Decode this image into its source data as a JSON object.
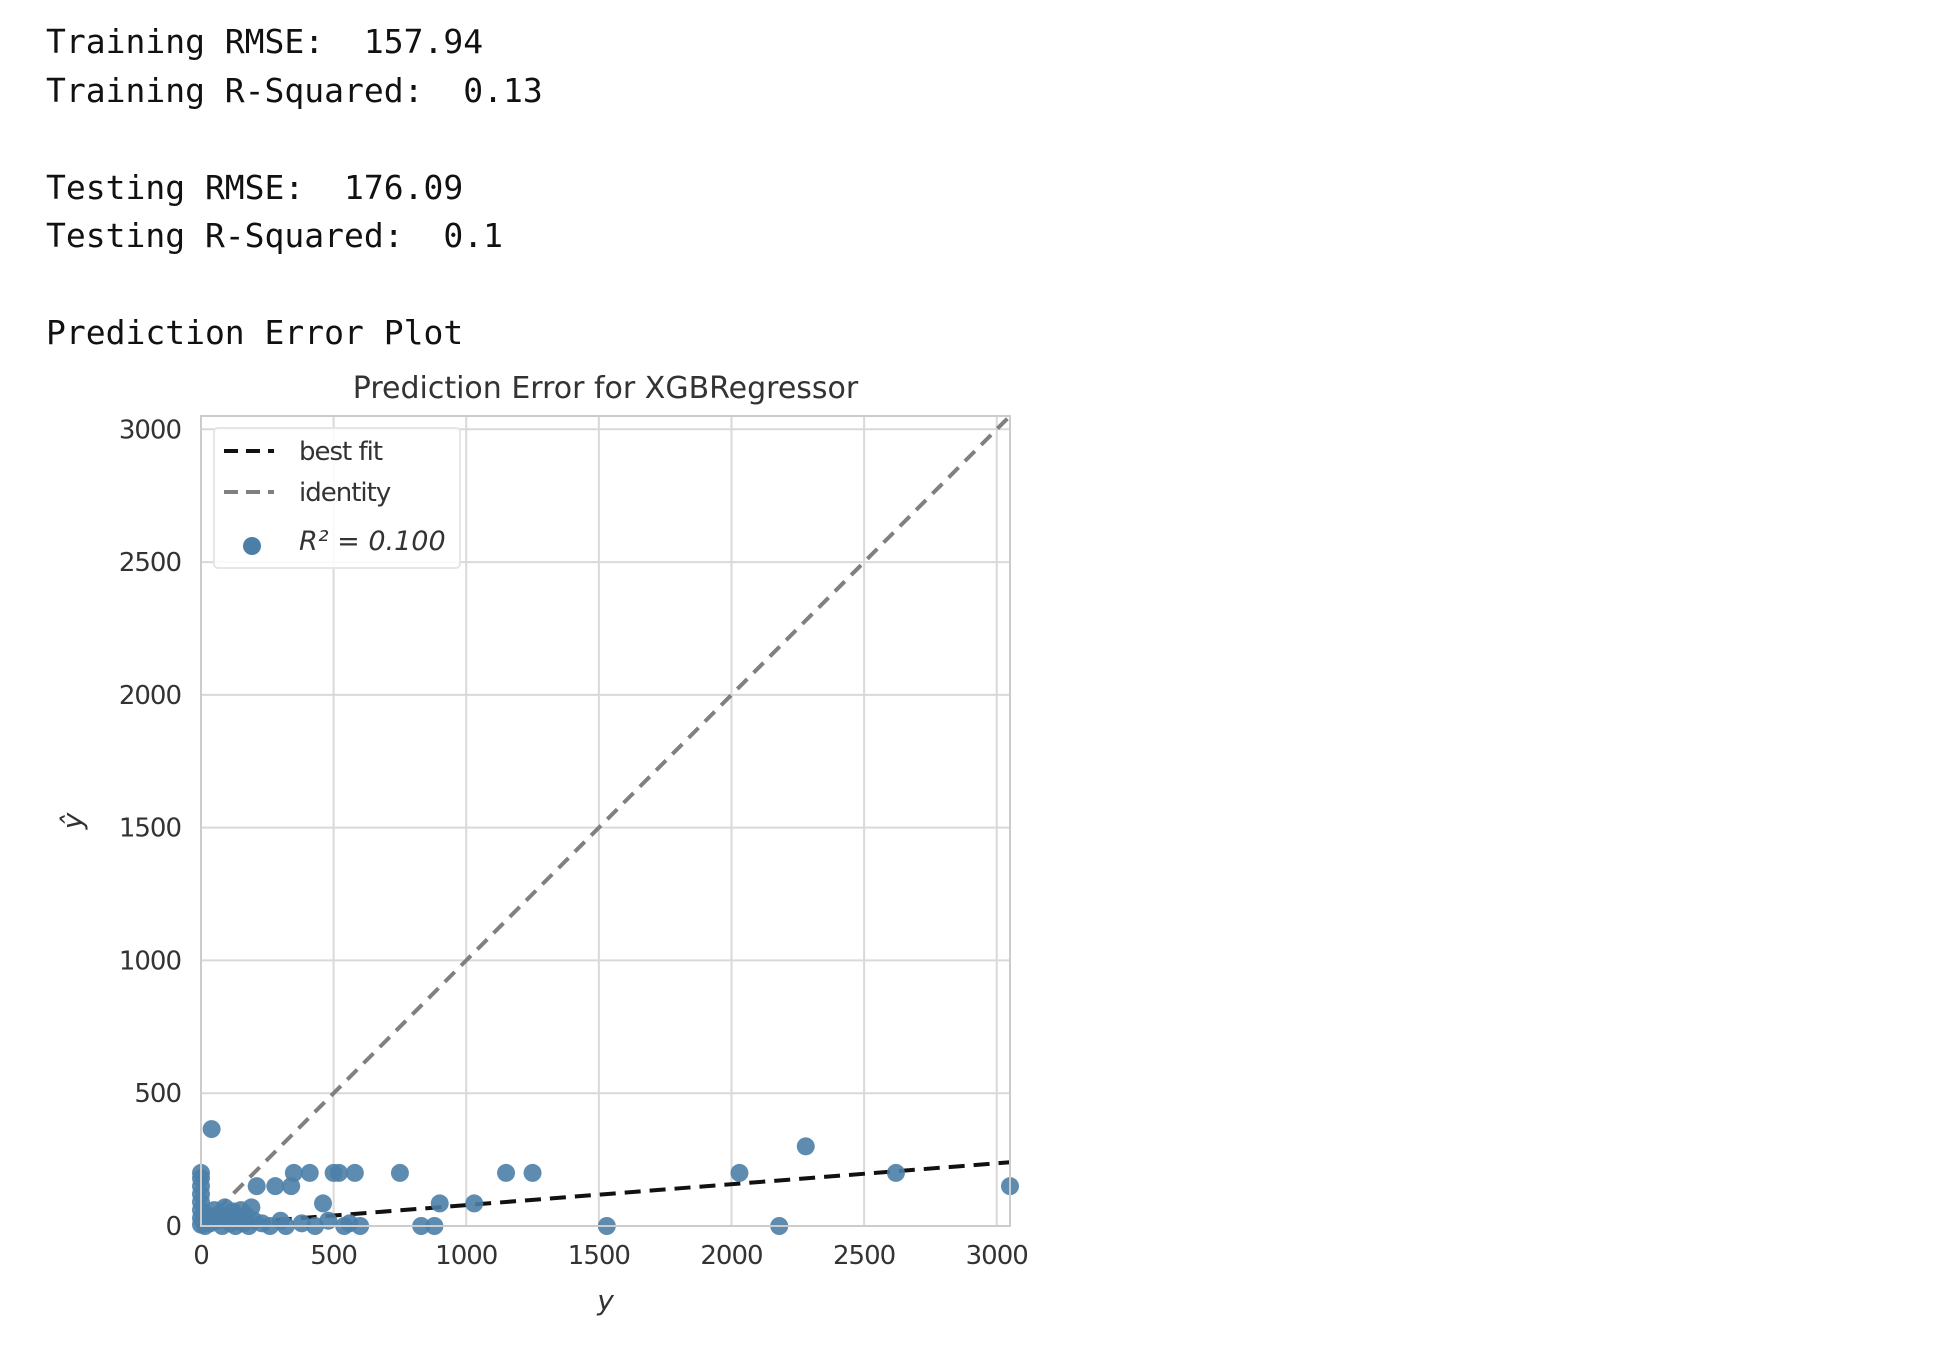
{
  "output": {
    "training_rmse_label": "Training RMSE:",
    "training_rmse_value": "157.94",
    "training_r2_label": "Training R-Squared:",
    "training_r2_value": "0.13",
    "testing_rmse_label": "Testing RMSE:",
    "testing_rmse_value": "176.09",
    "testing_r2_label": "Testing R-Squared:",
    "testing_r2_value": "0.1",
    "plot_heading": "Prediction Error Plot"
  },
  "chart_data": {
    "type": "scatter",
    "title": "Prediction Error for XGBRegressor",
    "xlabel": "y",
    "ylabel": "ŷ",
    "xlim": [
      0,
      3050
    ],
    "ylim": [
      0,
      3050
    ],
    "x_ticks": [
      0,
      500,
      1000,
      1500,
      2000,
      2500,
      3000
    ],
    "y_ticks": [
      0,
      500,
      1000,
      1500,
      2000,
      2500,
      3000
    ],
    "x_tick_labels": [
      "0",
      "500",
      "1000",
      "1500",
      "2000",
      "2500",
      "3000"
    ],
    "y_tick_labels": [
      "0",
      "500",
      "1000",
      "1500",
      "2000",
      "2500",
      "3000"
    ],
    "grid": true,
    "legend_position": "top-left",
    "legend": {
      "best_fit": "best fit",
      "identity": "identity",
      "r2_label": "R² = 0.100"
    },
    "best_fit_line": {
      "x": [
        0,
        3050
      ],
      "y": [
        0,
        240
      ]
    },
    "identity_line": {
      "x": [
        0,
        3050
      ],
      "y": [
        0,
        3050
      ]
    },
    "colors": {
      "points": "#4c7fa8",
      "best_fit": "#111111",
      "identity": "#808080",
      "grid": "#d9d9d9",
      "axes": "#cccccc"
    },
    "points": [
      {
        "x": 0,
        "y": 200
      },
      {
        "x": 0,
        "y": 180
      },
      {
        "x": 0,
        "y": 150
      },
      {
        "x": 0,
        "y": 120
      },
      {
        "x": 0,
        "y": 90
      },
      {
        "x": 0,
        "y": 60
      },
      {
        "x": 0,
        "y": 30
      },
      {
        "x": 0,
        "y": 5
      },
      {
        "x": 15,
        "y": 0
      },
      {
        "x": 25,
        "y": 40
      },
      {
        "x": 35,
        "y": 10
      },
      {
        "x": 40,
        "y": 365
      },
      {
        "x": 50,
        "y": 60
      },
      {
        "x": 60,
        "y": 20
      },
      {
        "x": 70,
        "y": 45
      },
      {
        "x": 80,
        "y": 0
      },
      {
        "x": 90,
        "y": 70
      },
      {
        "x": 100,
        "y": 30
      },
      {
        "x": 110,
        "y": 10
      },
      {
        "x": 120,
        "y": 55
      },
      {
        "x": 130,
        "y": 0
      },
      {
        "x": 140,
        "y": 25
      },
      {
        "x": 150,
        "y": 60
      },
      {
        "x": 160,
        "y": 10
      },
      {
        "x": 170,
        "y": 40
      },
      {
        "x": 180,
        "y": 0
      },
      {
        "x": 190,
        "y": 70
      },
      {
        "x": 200,
        "y": 20
      },
      {
        "x": 210,
        "y": 150
      },
      {
        "x": 230,
        "y": 10
      },
      {
        "x": 260,
        "y": 0
      },
      {
        "x": 280,
        "y": 150
      },
      {
        "x": 300,
        "y": 20
      },
      {
        "x": 320,
        "y": 0
      },
      {
        "x": 340,
        "y": 150
      },
      {
        "x": 350,
        "y": 200
      },
      {
        "x": 380,
        "y": 10
      },
      {
        "x": 410,
        "y": 200
      },
      {
        "x": 430,
        "y": 0
      },
      {
        "x": 460,
        "y": 85
      },
      {
        "x": 480,
        "y": 20
      },
      {
        "x": 500,
        "y": 200
      },
      {
        "x": 520,
        "y": 200
      },
      {
        "x": 540,
        "y": 0
      },
      {
        "x": 560,
        "y": 10
      },
      {
        "x": 580,
        "y": 200
      },
      {
        "x": 600,
        "y": 0
      },
      {
        "x": 750,
        "y": 200
      },
      {
        "x": 830,
        "y": 0
      },
      {
        "x": 880,
        "y": 0
      },
      {
        "x": 900,
        "y": 85
      },
      {
        "x": 1030,
        "y": 85
      },
      {
        "x": 1150,
        "y": 200
      },
      {
        "x": 1250,
        "y": 200
      },
      {
        "x": 1530,
        "y": 0
      },
      {
        "x": 2030,
        "y": 200
      },
      {
        "x": 2180,
        "y": 0
      },
      {
        "x": 2280,
        "y": 300
      },
      {
        "x": 2620,
        "y": 200
      },
      {
        "x": 3050,
        "y": 150
      }
    ]
  }
}
